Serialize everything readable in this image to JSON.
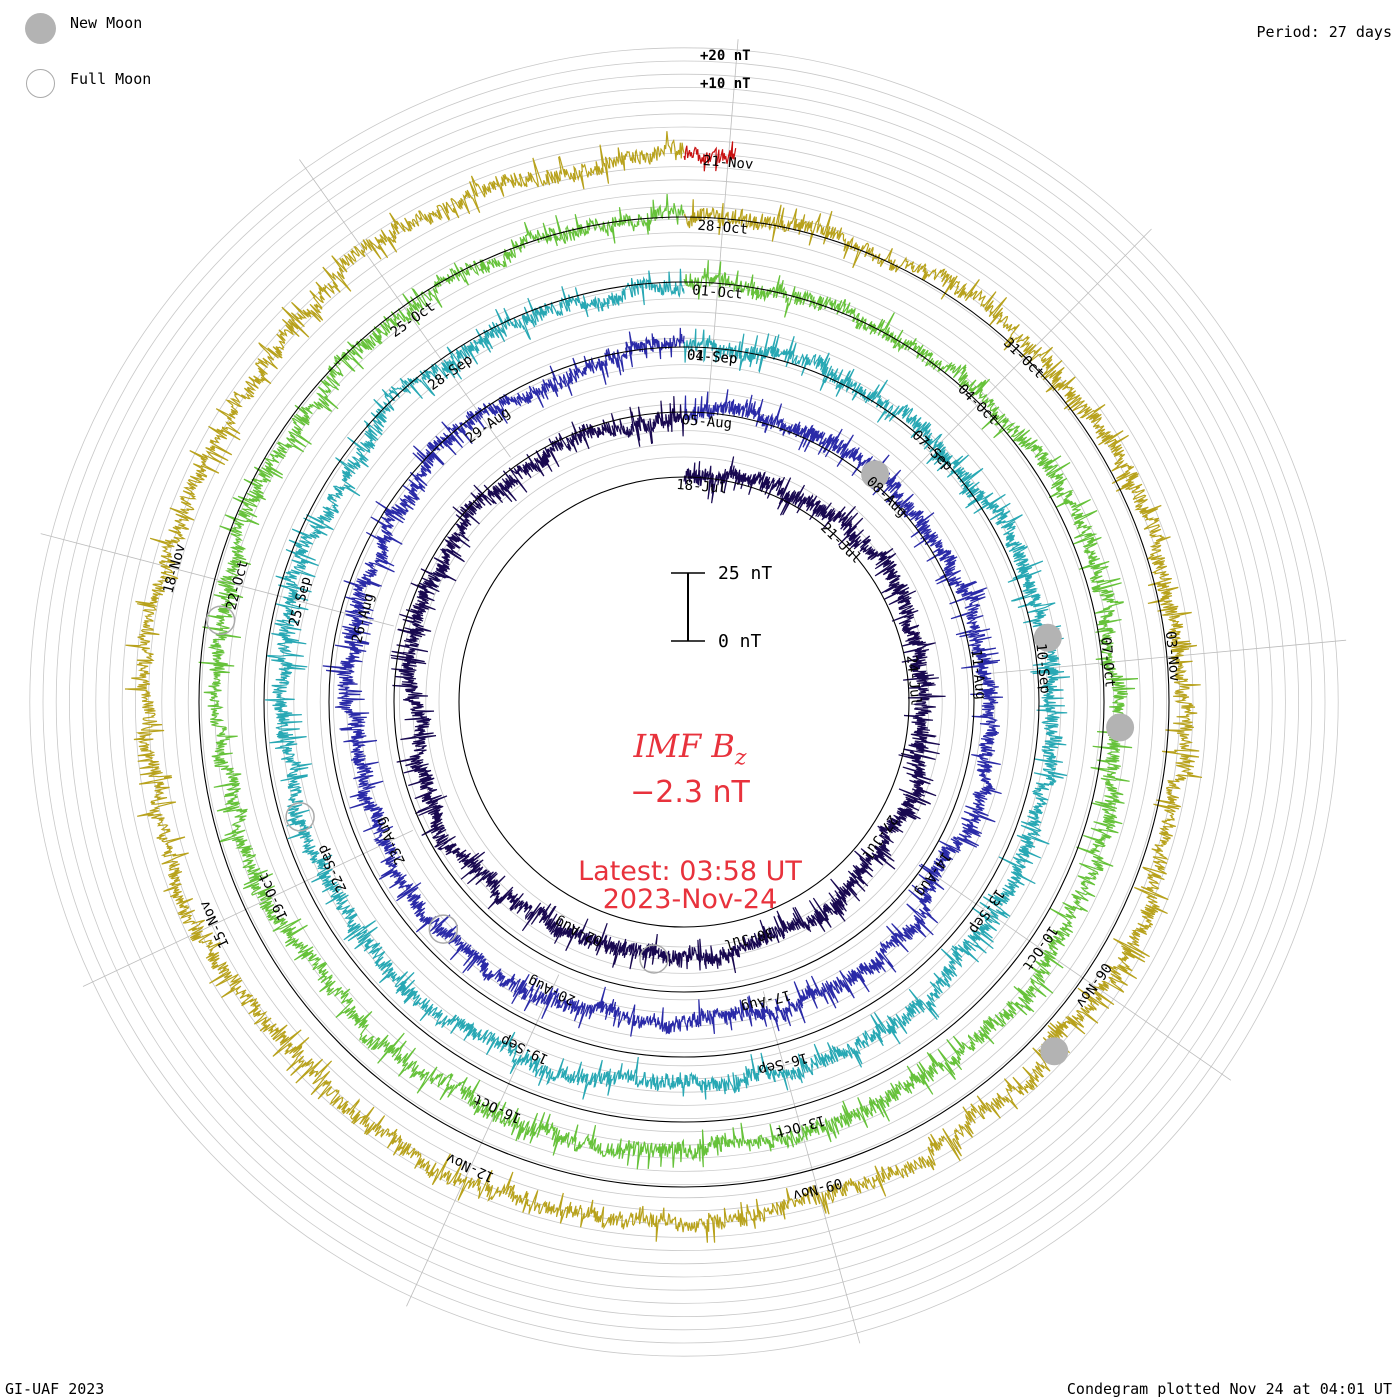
{
  "legend": {
    "new_moon": "New Moon",
    "full_moon": "Full Moon"
  },
  "period": "Period: 27 days",
  "scale_labels": [
    "+20 nT",
    "+10 nT"
  ],
  "scale_bar": {
    "top": "25 nT",
    "bottom": "0 nT"
  },
  "center": {
    "title_main": "IMF B",
    "title_sub": "z",
    "value": "−2.3 nT",
    "latest_line1": "Latest: 03:58 UT",
    "latest_line2": "2023-Nov-24"
  },
  "footer": {
    "left": "GI-UAF 2023",
    "right": "Condegram plotted Nov 24 at 04:01 UT"
  },
  "chart_data": {
    "type": "condegram",
    "title": "IMF Bz",
    "units": "nT",
    "period_days": 27,
    "latest_value": -2.3,
    "start_date": "2023-Jul-18",
    "end_date": "2023-Nov-24",
    "rings": [
      {
        "cycle": 1,
        "color": "#180850",
        "dates": [
          "18-Jul",
          "21-Jul",
          "24-Jul",
          "27-Jul",
          "30-Jul",
          "02-Aug"
        ]
      },
      {
        "cycle": 2,
        "color": "#2a2aa8",
        "dates": [
          "05-Aug",
          "08-Aug",
          "11-Aug",
          "14-Aug",
          "17-Aug",
          "20-Aug",
          "23-Aug",
          "26-Aug",
          "29-Aug",
          "01-Sep"
        ]
      },
      {
        "cycle": 3,
        "color": "#28a8b4",
        "dates": [
          "04-Sep",
          "07-Sep",
          "10-Sep",
          "13-Sep",
          "16-Sep",
          "19-Sep",
          "22-Sep",
          "25-Sep",
          "28-Sep"
        ]
      },
      {
        "cycle": 4,
        "color": "#66c23a",
        "dates": [
          "01-Oct",
          "04-Oct",
          "07-Oct",
          "10-Oct",
          "13-Oct",
          "16-Oct",
          "19-Oct",
          "22-Oct",
          "25-Oct"
        ]
      },
      {
        "cycle": 5,
        "color": "#b8a21c",
        "dates": [
          "28-Oct",
          "31-Oct",
          "03-Nov",
          "06-Nov",
          "09-Nov",
          "12-Nov",
          "15-Nov",
          "18-Nov"
        ]
      },
      {
        "cycle": 6,
        "color": "#c81010",
        "dates": [
          "21-Nov"
        ]
      }
    ],
    "moon_phases": {
      "new_moon_dates": [
        "17-Aug",
        "16-Sep",
        "14-Oct",
        "13-Nov"
      ],
      "full_moon_dates": [
        "01-Aug",
        "31-Aug",
        "29-Sep",
        "28-Oct"
      ]
    }
  }
}
